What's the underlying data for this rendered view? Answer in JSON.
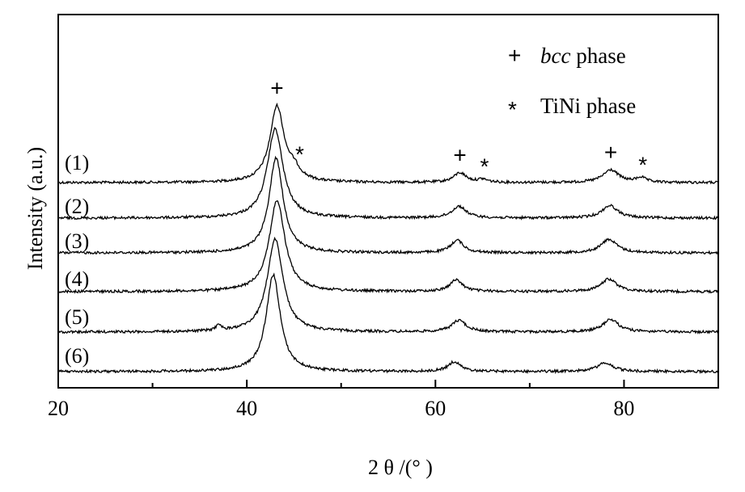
{
  "chart_data": {
    "type": "line",
    "title": "",
    "xlabel": "2 θ /(° )",
    "ylabel": "Intensity (a.u.)",
    "xlim": [
      20,
      90
    ],
    "x_ticks": [
      20,
      40,
      60,
      80
    ],
    "x_tick_labels": [
      "20",
      "40",
      "60",
      "80"
    ],
    "grid": false,
    "legend": {
      "position": "top-right",
      "entries": [
        {
          "symbol": "+",
          "label_italic": "bcc",
          "label_rest": " phase"
        },
        {
          "symbol": "*",
          "label_italic": "",
          "label_rest": "TiNi phase"
        }
      ]
    },
    "series": [
      {
        "label": "(1)",
        "peaks": [
          {
            "x": 43.2,
            "height": 0.78,
            "width": 0.9,
            "type": "bcc"
          },
          {
            "x": 45.0,
            "height": 0.1,
            "width": 0.8,
            "type": "TiNi"
          },
          {
            "x": 62.6,
            "height": 0.1,
            "width": 0.8,
            "type": "bcc"
          },
          {
            "x": 65.0,
            "height": 0.03,
            "width": 0.6,
            "type": "TiNi"
          },
          {
            "x": 78.6,
            "height": 0.13,
            "width": 1.0,
            "type": "bcc"
          },
          {
            "x": 81.8,
            "height": 0.05,
            "width": 0.6,
            "type": "TiNi"
          }
        ]
      },
      {
        "label": "(2)",
        "peaks": [
          {
            "x": 43.0,
            "height": 0.92,
            "width": 1.0
          },
          {
            "x": 62.5,
            "height": 0.12,
            "width": 0.9
          },
          {
            "x": 78.5,
            "height": 0.13,
            "width": 1.0
          }
        ]
      },
      {
        "label": "(3)",
        "peaks": [
          {
            "x": 43.1,
            "height": 0.98,
            "width": 0.9
          },
          {
            "x": 62.3,
            "height": 0.13,
            "width": 0.8
          },
          {
            "x": 78.4,
            "height": 0.14,
            "width": 1.0
          }
        ]
      },
      {
        "label": "(4)",
        "peaks": [
          {
            "x": 43.2,
            "height": 0.94,
            "width": 1.0
          },
          {
            "x": 62.2,
            "height": 0.12,
            "width": 0.8
          },
          {
            "x": 78.4,
            "height": 0.13,
            "width": 1.0
          }
        ]
      },
      {
        "label": "(5)",
        "peaks": [
          {
            "x": 37.0,
            "height": 0.06,
            "width": 0.3
          },
          {
            "x": 43.0,
            "height": 0.96,
            "width": 1.0
          },
          {
            "x": 62.5,
            "height": 0.12,
            "width": 0.9
          },
          {
            "x": 78.6,
            "height": 0.13,
            "width": 1.0
          }
        ]
      },
      {
        "label": "(6)",
        "peaks": [
          {
            "x": 42.8,
            "height": 1.0,
            "width": 0.9
          },
          {
            "x": 62.0,
            "height": 0.1,
            "width": 0.8
          },
          {
            "x": 78.0,
            "height": 0.09,
            "width": 1.0
          }
        ]
      }
    ],
    "peak_annotations": [
      {
        "series": "(1)",
        "x": 43.2,
        "symbol": "+"
      },
      {
        "series": "(1)",
        "x": 45.6,
        "symbol": "*"
      },
      {
        "series": "(1)",
        "x": 62.6,
        "symbol": "+"
      },
      {
        "series": "(1)",
        "x": 65.2,
        "symbol": "*"
      },
      {
        "series": "(1)",
        "x": 78.6,
        "symbol": "+"
      },
      {
        "series": "(1)",
        "x": 82.0,
        "symbol": "*"
      }
    ]
  }
}
